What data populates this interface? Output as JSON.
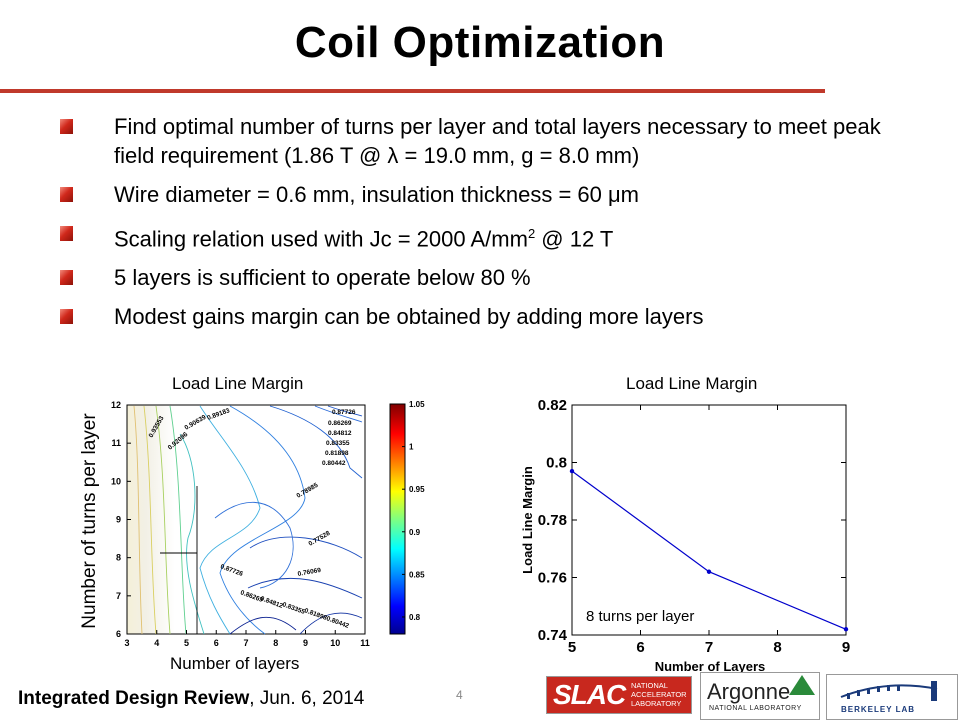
{
  "slide": {
    "title": "Coil Optimization",
    "bullets": [
      {
        "text": "Find optimal number of turns per layer and total layers necessary to meet peak field requirement (1.86 T @ λ = 19.0 mm, g = 8.0 mm)"
      },
      {
        "text": "Wire diameter = 0.6 mm, insulation thickness = 60 μm"
      },
      {
        "pre": "Scaling relation used with Jc = 2000 A/mm",
        "sup": "2",
        "post": " @ 12 T"
      },
      {
        "text": "5 layers is sufficient to operate below 80 %"
      },
      {
        "text": "Modest gains margin can be obtained by adding more layers"
      }
    ],
    "left_plot_title": "Load Line Margin",
    "right_plot_title": "Load Line Margin",
    "left_ylabel": "Number of turns per layer",
    "left_xlabel": "Number of layers",
    "footer_bold": "Integrated Design Review",
    "footer_rest": ",  Jun. 6, 2014",
    "page_number": "4",
    "logos": {
      "slac_big": "SLAC",
      "slac_small": "NATIONAL ACCELERATOR LABORATORY",
      "argonne_big": "Argonne",
      "argonne_small": "NATIONAL LABORATORY",
      "berkeley_small": "BERKELEY LAB"
    },
    "colors": {
      "accent": "#c0392b",
      "line": "#0000cc"
    }
  },
  "chart_data": [
    {
      "type": "heatmap",
      "title": "",
      "xlabel": "",
      "ylabel": "",
      "x_ticks": [
        "3",
        "4",
        "5",
        "6",
        "7",
        "8",
        "9",
        "10",
        "11"
      ],
      "y_ticks": [
        "6",
        "7",
        "8",
        "9",
        "10",
        "11",
        "12"
      ],
      "xlim": [
        3,
        11
      ],
      "ylim": [
        6,
        12
      ],
      "colorbar_ticks": [
        "1.05",
        "1",
        "0.95",
        "0.9",
        "0.85",
        "0.8"
      ],
      "colorbar_range": [
        0.78,
        1.05
      ],
      "contour_labels": [
        "0.87726",
        "0.86269",
        "0.84812",
        "0.83355",
        "0.81898",
        "0.80442",
        "0.78985",
        "0.77528",
        "0.76069",
        "0.80442",
        "0.81898",
        "0.83355",
        "0.84812",
        "0.86269",
        "0.87726",
        "0.89183",
        "0.90639",
        "0.92096",
        "0.93553"
      ]
    },
    {
      "type": "line",
      "title": "",
      "xlabel": "Number of Layers",
      "ylabel": "Load Line Margin",
      "xlim": [
        5,
        9
      ],
      "ylim": [
        0.74,
        0.82
      ],
      "x_ticks": [
        "5",
        "6",
        "7",
        "8",
        "9"
      ],
      "y_ticks": [
        "0.74",
        "0.76",
        "0.78",
        "0.8",
        "0.82"
      ],
      "annotation": "8 turns per layer",
      "series": [
        {
          "x": [
            5,
            7,
            9
          ],
          "values": [
            0.797,
            0.762,
            0.742
          ]
        }
      ]
    }
  ]
}
